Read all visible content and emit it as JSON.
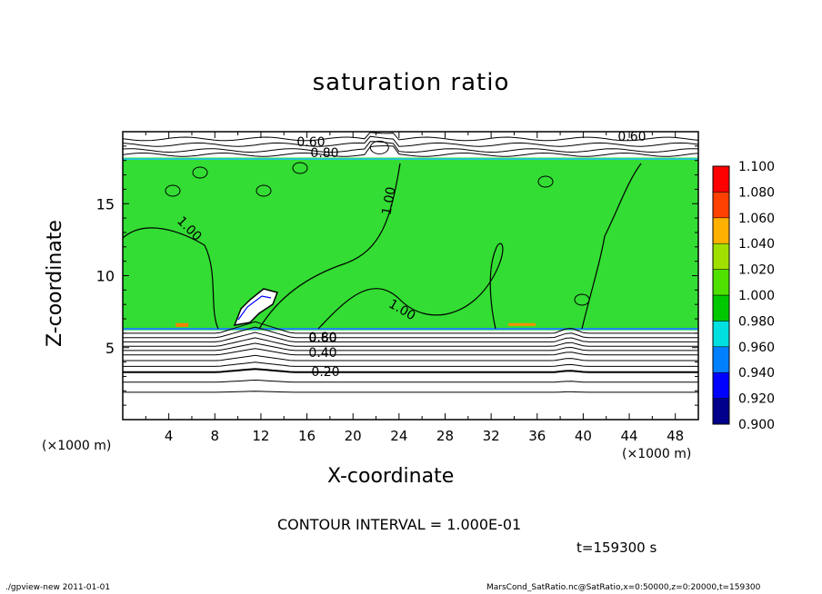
{
  "chart_data": {
    "type": "heatmap",
    "title": "saturation ratio",
    "xlabel": "X-coordinate",
    "ylabel": "Z-coordinate",
    "x_unit": "(×1000 m)",
    "y_unit": "(×1000 m)",
    "xlim": [
      0,
      50
    ],
    "ylim": [
      0,
      20
    ],
    "x_ticks": [
      "4",
      "8",
      "12",
      "16",
      "20",
      "24",
      "28",
      "32",
      "36",
      "40",
      "44",
      "48"
    ],
    "y_ticks": [
      "5",
      "10",
      "15"
    ],
    "colorbar": {
      "levels": [
        "0.900",
        "0.920",
        "0.940",
        "0.960",
        "0.980",
        "1.000",
        "1.020",
        "1.040",
        "1.060",
        "1.080",
        "1.100"
      ],
      "colors": [
        "#6a00c8",
        "#00008b",
        "#0000ff",
        "#0080ff",
        "#00e0e0",
        "#00c800",
        "#50e000",
        "#a0e000",
        "#ffb000",
        "#ff4000",
        "#ff0000",
        "#ff8080"
      ]
    },
    "contour_labels": [
      "0.60",
      "0.80",
      "0.60",
      "1.00",
      "1.00",
      "1.00",
      "0.80",
      "0.60",
      "0.40",
      "0.20"
    ],
    "colors": {
      "saturated_region": "#33dd33",
      "contour_line": "#000000"
    }
  },
  "annotations": {
    "contour_interval": "CONTOUR INTERVAL = 1.000E-01",
    "time": "t=159300 s"
  },
  "footer": {
    "left": "./gpview-new  2011-01-01",
    "right": "MarsCond_SatRatio.nc@SatRatio,x=0:50000,z=0:20000,t=159300"
  }
}
